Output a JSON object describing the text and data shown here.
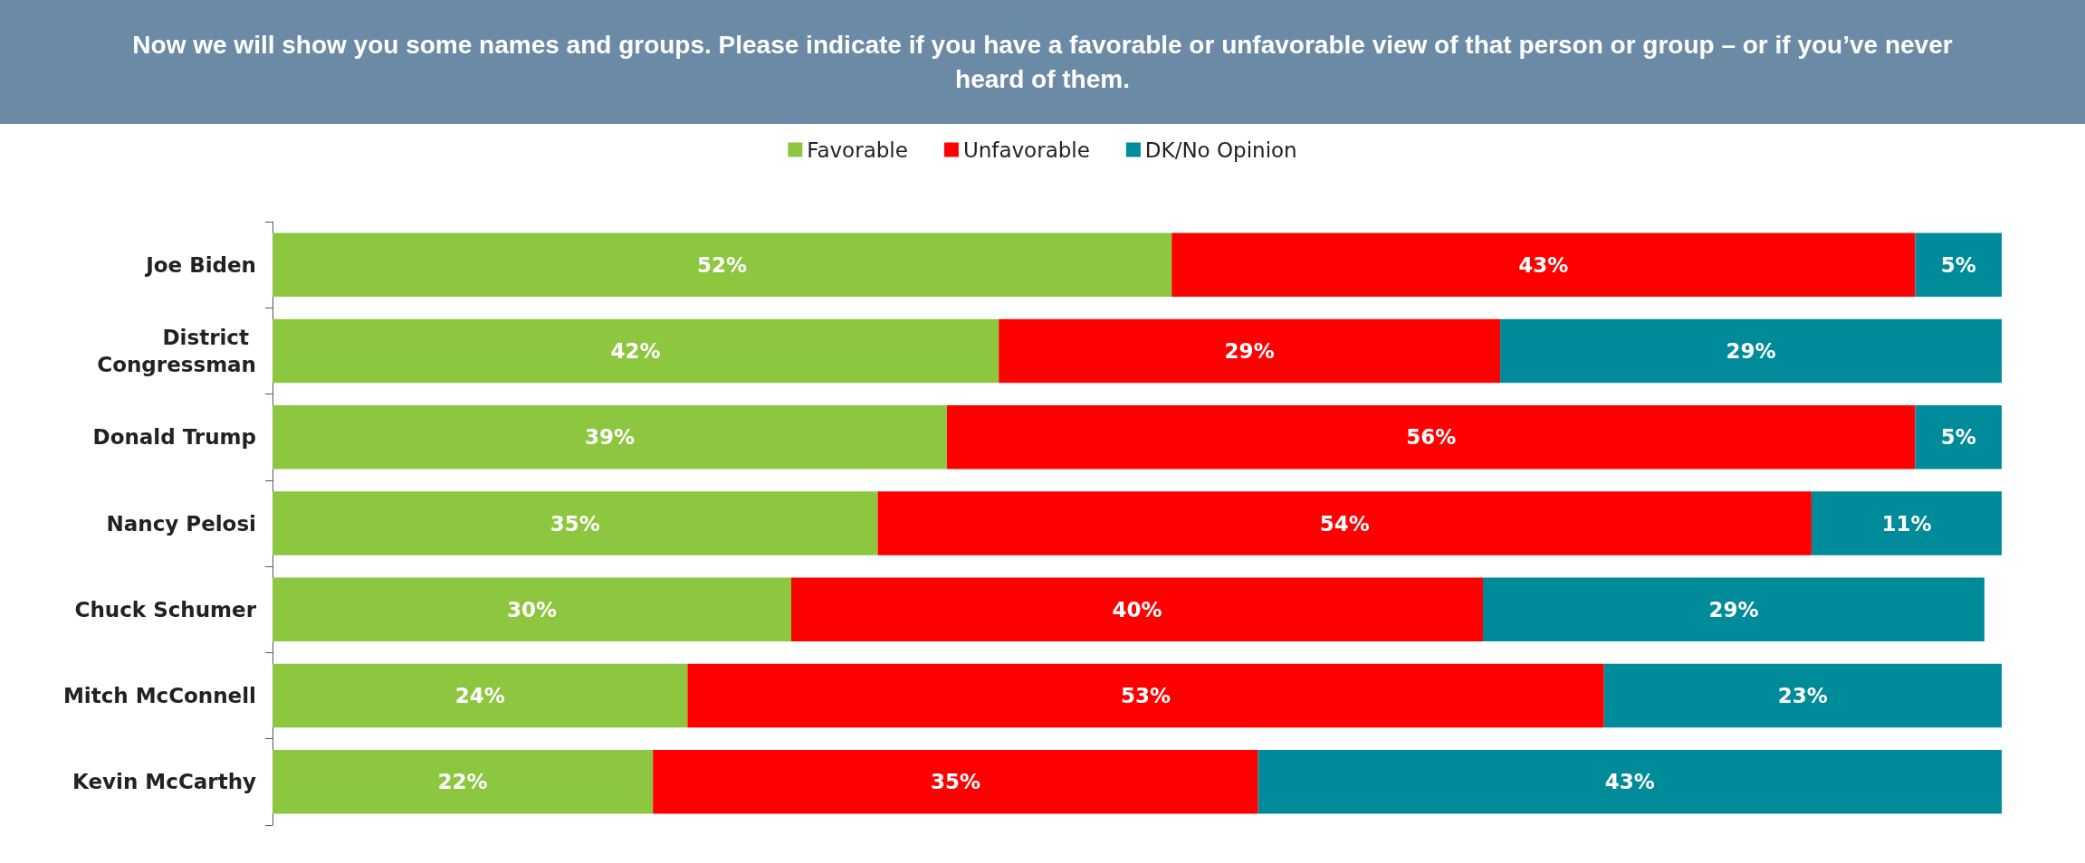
{
  "chart_data": {
    "type": "bar",
    "orientation": "horizontal",
    "stacked": true,
    "title": "Now we will show you some names and groups. Please indicate if you have a favorable or unfavorable view of that person or group – or if you’ve never heard of them.",
    "categories": [
      "Joe Biden",
      "District Congressman",
      "Donald Trump",
      "Nancy Pelosi",
      "Chuck Schumer",
      "Mitch McConnell",
      "Kevin McCarthy"
    ],
    "series": [
      {
        "name": "Favorable",
        "color": "#8dc63f",
        "values": [
          52,
          42,
          39,
          35,
          30,
          24,
          22
        ],
        "value_labels": [
          "52%",
          "42%",
          "39%",
          "35%",
          "30%",
          "24%",
          "22%"
        ]
      },
      {
        "name": "Unfavorable",
        "color": "#ff0000",
        "values": [
          43,
          29,
          56,
          54,
          40,
          53,
          35
        ],
        "value_labels": [
          "43%",
          "29%",
          "56%",
          "54%",
          "40%",
          "53%",
          "35%"
        ]
      },
      {
        "name": "DK/No Opinion",
        "color": "#008b9a",
        "values": [
          5,
          29,
          5,
          11,
          29,
          23,
          43
        ],
        "value_labels": [
          "5%",
          "29%",
          "5%",
          "11%",
          "29%",
          "23%",
          "43%"
        ]
      }
    ],
    "legend": "top"
  }
}
